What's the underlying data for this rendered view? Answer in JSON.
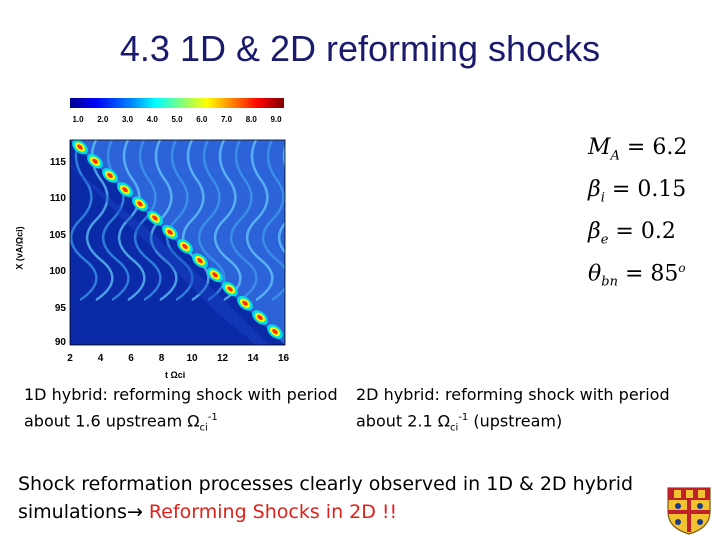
{
  "slide": {
    "title": "4.3 1D & 2D reforming shocks"
  },
  "figure": {
    "colorbar_ticks": [
      "1.0",
      "2.0",
      "3.0",
      "4.0",
      "5.0",
      "6.0",
      "7.0",
      "8.0",
      "9.0"
    ],
    "y_ticks": [
      "115",
      "110",
      "105",
      "100",
      "95",
      "90"
    ],
    "x_ticks": [
      "2",
      "4",
      "6",
      "8",
      "10",
      "12",
      "14",
      "16"
    ],
    "y_label": "X (vA/Ωci)",
    "x_label": "t Ωci"
  },
  "params": [
    {
      "sym": "M",
      "sub": "A",
      "value": "= 6.2"
    },
    {
      "sym": "β",
      "sub": "i",
      "value": "= 0.15"
    },
    {
      "sym": "β",
      "sub": "e",
      "value": "= 0.2"
    },
    {
      "sym": "θ",
      "sub": "bn",
      "value": "= 85",
      "sup": "o"
    }
  ],
  "captions": {
    "c1_part1": "1D hybrid: reforming shock with period about 1.6 upstream Ω",
    "c1_sub": "ci",
    "c1_sup": "-1",
    "c2_part1": "2D hybrid: reforming shock with period about 2.1 Ω",
    "c2_sub": "ci",
    "c2_sup": "-1",
    "c2_part2": " (upstream)"
  },
  "summary": {
    "text": "Shock reformation processes clearly observed in 1D & 2D hybrid simulations",
    "arrow": "→",
    "highlight": " Reforming Shocks in 2D !!"
  },
  "colors": {
    "title": "#1a1a6e",
    "highlight": "#e0201a",
    "plot_background": "#0a2aa8"
  }
}
